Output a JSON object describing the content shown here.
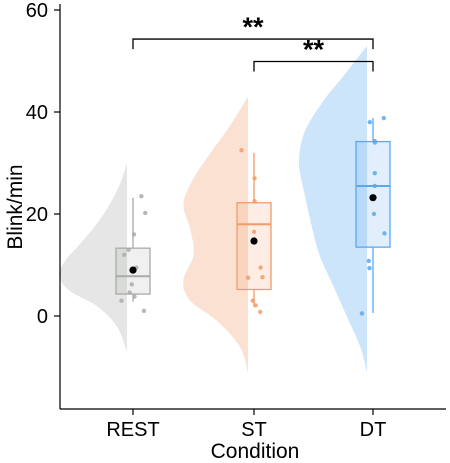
{
  "chart_data": {
    "type": "raincloud",
    "xlabel": "Condition",
    "ylabel": "Blink/min",
    "ylim": [
      -18,
      61
    ],
    "yticks": [
      0,
      20,
      40,
      60
    ],
    "categories": [
      "REST",
      "ST",
      "DT"
    ],
    "groups": [
      {
        "name": "REST",
        "color": "#a9aba8",
        "density": [
          [
            -7,
            0.0
          ],
          [
            -2,
            0.15
          ],
          [
            2,
            0.45
          ],
          [
            5,
            0.85
          ],
          [
            8,
            1.0
          ],
          [
            11,
            0.9
          ],
          [
            14,
            0.7
          ],
          [
            18,
            0.45
          ],
          [
            22,
            0.25
          ],
          [
            26,
            0.1
          ],
          [
            30,
            0.0
          ]
        ],
        "box": {
          "q1": 4.3,
          "median": 7.8,
          "q3": 13.3,
          "min": 2.8,
          "max": 23.2
        },
        "mean": 9.0,
        "points": [
          1.0,
          3.0,
          3.8,
          4.6,
          6.2,
          9.5,
          12.0,
          13.0,
          16.0,
          20.2,
          23.5
        ]
      },
      {
        "name": "ST",
        "color": "#f29b67",
        "density": [
          [
            -11,
            0.0
          ],
          [
            -6,
            0.12
          ],
          [
            -1,
            0.45
          ],
          [
            3,
            0.85
          ],
          [
            7,
            0.95
          ],
          [
            12,
            0.8
          ],
          [
            17,
            0.85
          ],
          [
            22,
            0.95
          ],
          [
            27,
            0.8
          ],
          [
            32,
            0.55
          ],
          [
            37,
            0.28
          ],
          [
            43,
            0.0
          ]
        ],
        "box": {
          "q1": 5.2,
          "median": 18.0,
          "q3": 22.2,
          "min": 1.8,
          "max": 32.0
        },
        "mean": 14.7,
        "points": [
          0.8,
          2.1,
          3.0,
          7.5,
          7.6,
          9.5,
          16.5,
          22.5,
          27.0,
          32.5
        ]
      },
      {
        "name": "DT",
        "color": "#5aa8f0",
        "density": [
          [
            -11,
            0.0
          ],
          [
            -6,
            0.1
          ],
          [
            0,
            0.3
          ],
          [
            6,
            0.5
          ],
          [
            12,
            0.7
          ],
          [
            18,
            0.82
          ],
          [
            24,
            0.92
          ],
          [
            30,
            1.0
          ],
          [
            36,
            0.92
          ],
          [
            42,
            0.65
          ],
          [
            47,
            0.35
          ],
          [
            53,
            0.0
          ]
        ],
        "box": {
          "q1": 13.5,
          "median": 25.5,
          "q3": 34.2,
          "min": 0.6,
          "max": 38.8
        },
        "mean": 23.2,
        "points": [
          0.5,
          9.4,
          10.8,
          16.2,
          20.0,
          25.5,
          28.0,
          34.0,
          34.3,
          38.0,
          38.8
        ]
      }
    ],
    "significance": [
      {
        "from": "REST",
        "to": "DT",
        "y": 54.3,
        "label": "**"
      },
      {
        "from": "ST",
        "to": "DT",
        "y": 49.9,
        "label": "**"
      }
    ]
  }
}
